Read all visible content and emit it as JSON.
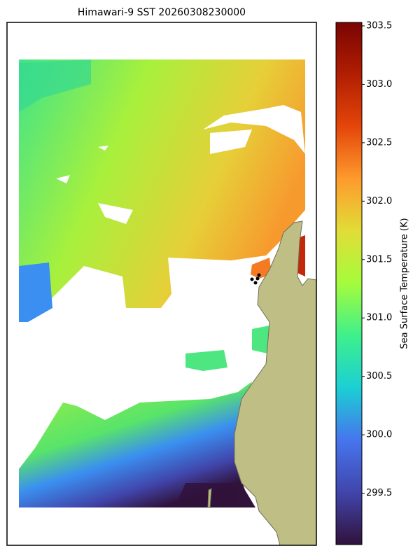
{
  "title": "Himawari-9 SST 20260308230000",
  "colorbar": {
    "label": "Sea Surface Temperature (K)",
    "ylim": [
      299.06,
      303.53
    ],
    "yticks": [
      299.5,
      {
        "value": 300,
        "label": "300.0"
      },
      300.5,
      {
        "value": 301,
        "label": "301.0"
      },
      301.5,
      {
        "value": 302,
        "label": "302.0"
      },
      302.5,
      {
        "value": 303,
        "label": "303.0"
      },
      303.5
    ]
  }
}
